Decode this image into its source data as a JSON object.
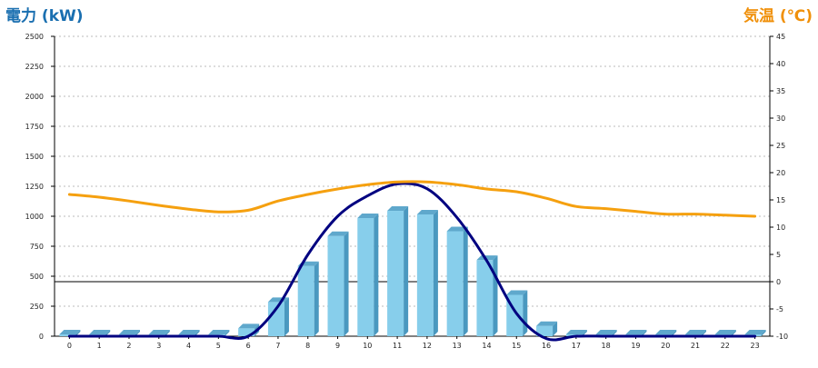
{
  "chart_data": {
    "type": "bar",
    "y_left_title": "電力 (kW)",
    "y_right_title": "気温 (℃)",
    "categories": [
      "0",
      "1",
      "2",
      "3",
      "4",
      "5",
      "6",
      "7",
      "8",
      "9",
      "10",
      "11",
      "12",
      "13",
      "14",
      "15",
      "16",
      "17",
      "18",
      "19",
      "20",
      "21",
      "22",
      "23"
    ],
    "y_left_ticks": [
      "0",
      "250",
      "500",
      "750",
      "1000",
      "1250",
      "1500",
      "1750",
      "2000",
      "2250",
      "2500"
    ],
    "y_right_ticks": [
      "-10",
      "-5",
      "0",
      "5",
      "10",
      "15",
      "20",
      "25",
      "30",
      "35",
      "40",
      "45"
    ],
    "y_left_range": [
      0,
      2500
    ],
    "y_right_range": [
      -10,
      45
    ],
    "grid": "horizontal dotted",
    "series": [
      {
        "kind": "bar",
        "axis": "left",
        "values": [
          0,
          0,
          0,
          0,
          0,
          0,
          50,
          270,
          570,
          820,
          970,
          1030,
          1000,
          860,
          620,
          330,
          70,
          0,
          0,
          0,
          0,
          0,
          0,
          0
        ],
        "color": "#87ceeb"
      },
      {
        "kind": "line",
        "axis": "left",
        "values": [
          0,
          0,
          0,
          0,
          0,
          0,
          0,
          250,
          680,
          1000,
          1170,
          1270,
          1230,
          990,
          630,
          190,
          -20,
          0,
          0,
          0,
          0,
          0,
          0,
          0
        ],
        "color": "#000080"
      },
      {
        "kind": "line",
        "axis": "right",
        "values": [
          16,
          15.5,
          14.8,
          14,
          13.3,
          12.8,
          13.1,
          14.8,
          16,
          17,
          17.8,
          18.3,
          18.3,
          17.8,
          17,
          16.5,
          15.3,
          13.8,
          13.4,
          12.9,
          12.4,
          12.4,
          12.2,
          12
        ],
        "color": "#f5a00f"
      }
    ],
    "reference_line": {
      "axis": "right",
      "value": 0,
      "color": "#000000"
    }
  }
}
